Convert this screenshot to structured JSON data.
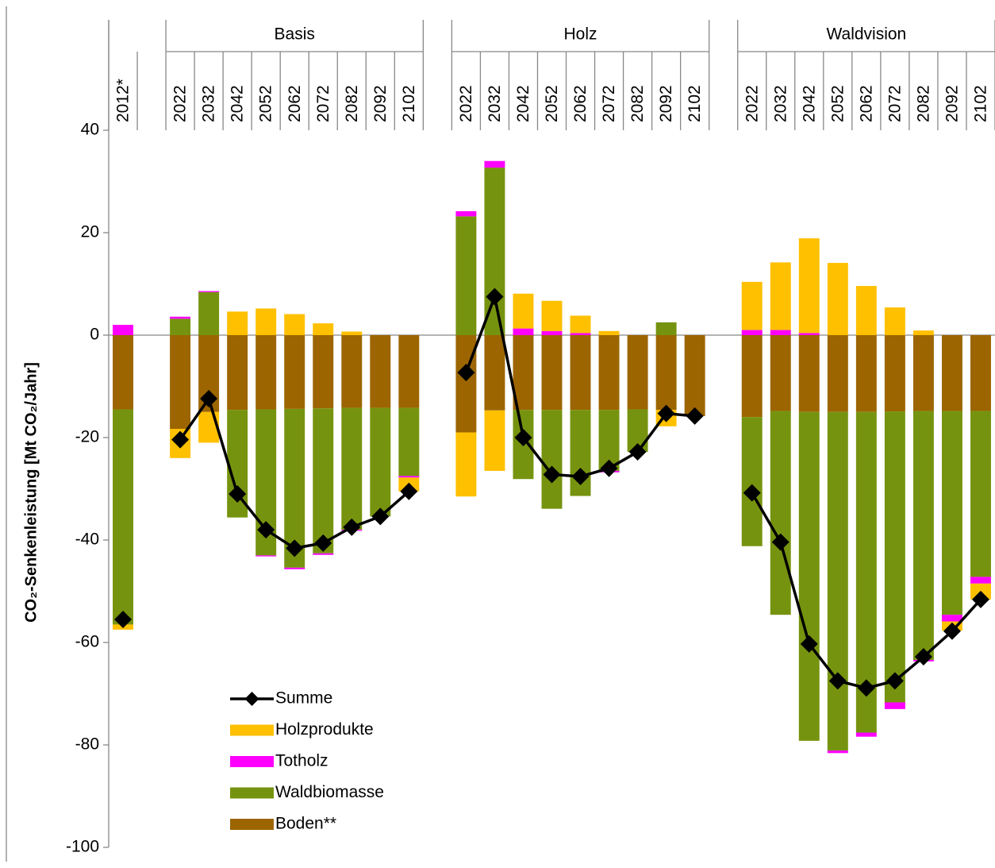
{
  "chart_data": {
    "type": "stacked_bar_line",
    "y_label": "CO₂-Senkenleistung [Mt CO₂/Jahr]",
    "categories": [
      "2012*",
      null,
      "2022",
      "2032",
      "2042",
      "2052",
      "2062",
      "2072",
      "2082",
      "2092",
      "2102",
      null,
      "2022",
      "2032",
      "2042",
      "2052",
      "2062",
      "2072",
      "2082",
      "2092",
      "2102",
      null,
      "2022",
      "2032",
      "2042",
      "2052",
      "2062",
      "2072",
      "2082",
      "2092",
      "2102"
    ],
    "category_groups": [
      null,
      null,
      "Basis",
      "Basis",
      "Basis",
      "Basis",
      "Basis",
      "Basis",
      "Basis",
      "Basis",
      "Basis",
      null,
      "Holz",
      "Holz",
      "Holz",
      "Holz",
      "Holz",
      "Holz",
      "Holz",
      "Holz",
      "Holz",
      null,
      "Waldvision",
      "Waldvision",
      "Waldvision",
      "Waldvision",
      "Waldvision",
      "Waldvision",
      "Waldvision",
      "Waldvision",
      "Waldvision"
    ],
    "series": [
      {
        "name": "Boden**",
        "color": "#9c6500",
        "kind": "bar",
        "values": [
          -14.5,
          null,
          -18.3,
          -15,
          -14.6,
          -14.5,
          -14.4,
          -14.3,
          -14.2,
          -14.2,
          -14.2,
          null,
          -19,
          -14.7,
          -14.6,
          -14.6,
          -14.6,
          -14.6,
          -14.5,
          -14.6,
          -15.8,
          null,
          -16,
          -14.8,
          -15,
          -15,
          -15,
          -14.9,
          -14.8,
          -14.8,
          -14.8
        ]
      },
      {
        "name": "Waldbiomasse",
        "color": "#76930f",
        "kind": "bar",
        "values": [
          -42,
          null,
          3.2,
          8.4,
          -21,
          -28.5,
          -31,
          -28.3,
          -23.8,
          -21.2,
          -13.3,
          null,
          23.2,
          32.7,
          -13.5,
          -19.3,
          -16.8,
          -11.9,
          -8.3,
          2.5,
          0,
          null,
          -25.2,
          -39.8,
          -64.2,
          -66.1,
          -62.6,
          -56.8,
          -48.6,
          -39.8,
          -32.4
        ]
      },
      {
        "name": "Totholz",
        "color": "#ff00ff",
        "kind": "bar",
        "values": [
          2,
          null,
          0.4,
          0.2,
          0,
          -0.2,
          -0.3,
          -0.3,
          -0.2,
          0,
          -0.3,
          null,
          1,
          1.3,
          1.3,
          0.8,
          0.4,
          -0.3,
          0,
          0,
          0,
          null,
          1,
          1,
          0.4,
          -0.5,
          -0.8,
          -1.3,
          -0.3,
          -1.3,
          -1.3
        ]
      },
      {
        "name": "Holzprodukte",
        "color": "#ffc000",
        "kind": "bar",
        "values": [
          -1,
          null,
          -5.7,
          -6,
          4.6,
          5.2,
          4.1,
          2.3,
          0.7,
          0,
          -2.7,
          null,
          -12.5,
          -11.8,
          6.8,
          5.9,
          3.4,
          0.8,
          0,
          -3.2,
          0,
          null,
          9.4,
          13.2,
          18.5,
          14.1,
          9.6,
          5.4,
          0.9,
          -1.8,
          -3.1
        ]
      },
      {
        "name": "Summe",
        "color": "#000000",
        "kind": "line",
        "values": [
          -55.5,
          null,
          -20.4,
          -12.4,
          -31,
          -38,
          -41.6,
          -40.6,
          -37.5,
          -35.4,
          -30.5,
          null,
          -7.3,
          7.5,
          -20,
          -27.2,
          -27.6,
          -26,
          -22.8,
          -15.3,
          -15.8,
          null,
          -30.8,
          -40.4,
          -60.3,
          -67.5,
          -68.9,
          -67.5,
          -62.8,
          -57.8,
          -51.6
        ]
      }
    ],
    "ylim": [
      -100,
      40
    ],
    "yticks": [
      -100,
      -80,
      -60,
      -40,
      -20,
      0,
      20,
      40
    ],
    "legend": "lower-left"
  }
}
